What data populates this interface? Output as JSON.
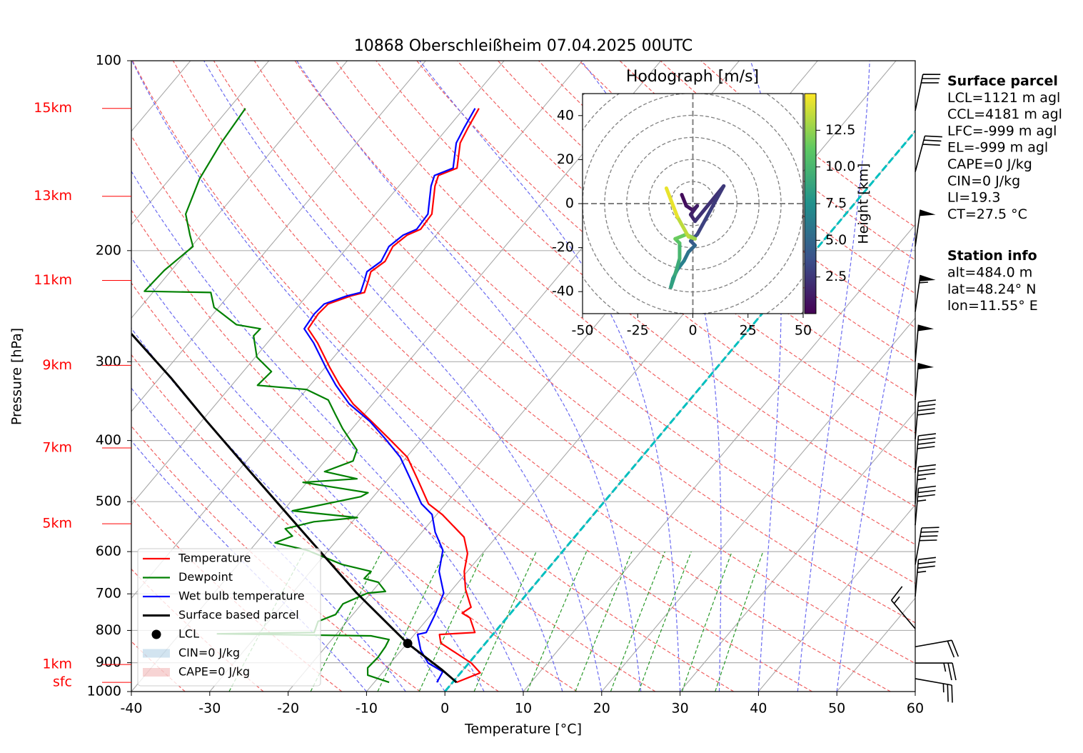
{
  "chart_data": {
    "type": "skewt",
    "title": "10868 Oberschleißheim 07.04.2025 00UTC",
    "xlabel": "Temperature [°C]",
    "ylabel": "Pressure [hPa]",
    "xlim": [
      -40,
      60
    ],
    "xticks": [
      -40,
      -30,
      -20,
      -10,
      0,
      10,
      20,
      30,
      40,
      50,
      60
    ],
    "ylim": [
      1000,
      100
    ],
    "yticks": [
      100,
      200,
      300,
      400,
      500,
      600,
      700,
      800,
      900,
      1000
    ],
    "log_scale": true,
    "grid": true,
    "legend": "lower left",
    "highlight_isotherm": {
      "value": 0,
      "color": "#00bfbf"
    },
    "series": [
      {
        "name": "Temperature",
        "color": "#ff0000",
        "pressure": [
          967,
          934,
          901,
          871,
          838,
          812,
          806,
          764,
          751,
          735,
          689,
          645,
          604,
          569,
          524,
          504,
          460,
          425,
          398,
          373,
          350,
          327,
          307,
          280,
          266,
          252,
          243,
          236,
          233,
          224,
          216,
          208,
          197,
          189,
          185,
          175,
          158,
          152,
          148,
          135,
          128,
          119
        ],
        "values": [
          0.5,
          2.5,
          0.3,
          -2.5,
          -5.7,
          -6.8,
          -2.5,
          -4.7,
          -6.2,
          -5.7,
          -8.3,
          -10.4,
          -11.9,
          -14.1,
          -19.3,
          -22.2,
          -26.3,
          -29.9,
          -34.1,
          -38.3,
          -42.5,
          -46.2,
          -49.3,
          -53.6,
          -56.3,
          -56.6,
          -56.4,
          -54.4,
          -53.0,
          -53.7,
          -54.4,
          -53.7,
          -54.3,
          -53.7,
          -52.6,
          -52.8,
          -55.4,
          -56.1,
          -54.5,
          -56.8,
          -57.4,
          -58.1
        ]
      },
      {
        "name": "Dewpoint",
        "color": "#008000",
        "pressure": [
          967,
          942,
          917,
          882,
          849,
          827,
          816,
          810,
          806,
          774,
          755,
          726,
          698,
          694,
          671,
          662,
          645,
          629,
          597,
          581,
          567,
          552,
          538,
          530,
          517,
          491,
          484,
          466,
          460,
          448,
          431,
          414,
          383,
          364,
          345,
          332,
          327,
          311,
          295,
          273,
          266,
          262,
          246,
          233,
          232,
          215,
          197,
          189,
          175,
          154,
          135,
          119
        ],
        "values": [
          -8.1,
          -11.6,
          -12.4,
          -12.2,
          -12.4,
          -12.7,
          -15.4,
          -35.2,
          -23.0,
          -23.7,
          -22.2,
          -22.4,
          -20.4,
          -18.3,
          -20.2,
          -22.4,
          -22.3,
          -26.7,
          -32.7,
          -37.6,
          -36.1,
          -37.8,
          -34.9,
          -29.8,
          -38.8,
          -31.6,
          -31.1,
          -40.5,
          -34.0,
          -38.9,
          -36.4,
          -37.1,
          -41.2,
          -43.6,
          -46.1,
          -50.0,
          -56.7,
          -56.4,
          -59.8,
          -62.5,
          -62.4,
          -65.9,
          -70.6,
          -72.6,
          -81.2,
          -80.9,
          -79.8,
          -81.4,
          -84.2,
          -86.2,
          -87.3,
          -87.9
        ]
      },
      {
        "name": "Wet bulb temperature",
        "color": "#0000ff",
        "pressure": [
          967,
          930,
          901,
          860,
          812,
          806,
          755,
          698,
          645,
          597,
          559,
          524,
          504,
          460,
          425,
          398,
          373,
          350,
          327,
          307,
          280,
          266,
          252,
          243,
          236,
          233,
          224,
          216,
          208,
          197,
          189,
          185,
          175,
          158,
          152,
          148,
          135,
          128,
          119
        ],
        "values": [
          -2.0,
          -2.4,
          -5.2,
          -7.5,
          -9.6,
          -8.7,
          -9.5,
          -10.7,
          -13.6,
          -15.4,
          -18.3,
          -20.6,
          -23.1,
          -27.2,
          -30.8,
          -34.6,
          -38.5,
          -43.0,
          -46.7,
          -49.8,
          -54.1,
          -56.8,
          -57.1,
          -56.9,
          -54.9,
          -53.5,
          -54.2,
          -54.9,
          -54.2,
          -54.8,
          -54.2,
          -53.1,
          -53.3,
          -55.9,
          -56.6,
          -55.0,
          -57.3,
          -57.9,
          -58.6
        ]
      },
      {
        "name": "Surface based parcel",
        "color": "#000000",
        "pressure": [
          967,
          925,
          839,
          698,
          552,
          448,
          373,
          319,
          271
        ],
        "values": [
          0.5,
          -2.6,
          -9.9,
          -21.8,
          -35.9,
          -48.4,
          -59.3,
          -68.4,
          -78.3
        ]
      }
    ],
    "lcl": {
      "name": "LCL",
      "color": "#000000",
      "pressure": 839,
      "values": -9.9
    },
    "shaded": [
      {
        "name": "CIN=0 J/kg",
        "color": "#1f77b4"
      },
      {
        "name": "CAPE=0 J/kg",
        "color": "#d62728"
      }
    ],
    "height_labels": [
      {
        "label": "15km",
        "pressure": 119
      },
      {
        "label": "13km",
        "pressure": 164
      },
      {
        "label": "11km",
        "pressure": 223
      },
      {
        "label": "9km",
        "pressure": 304
      },
      {
        "label": "7km",
        "pressure": 411
      },
      {
        "label": "5km",
        "pressure": 542
      },
      {
        "label": "1km",
        "pressure": 906
      },
      {
        "label": "sfc",
        "pressure": 967
      }
    ],
    "wind_barbs": {
      "pressure": [
        120,
        150,
        197,
        250,
        300,
        345,
        398,
        450,
        504,
        545,
        629,
        707,
        795,
        849,
        901,
        954
      ],
      "speed": [
        30,
        30,
        50,
        55,
        50,
        50,
        40,
        40,
        35,
        35,
        40,
        35,
        15,
        20,
        25,
        25
      ],
      "direction": [
        12,
        15,
        8,
        8,
        5,
        5,
        5,
        5,
        5,
        5,
        10,
        5,
        320,
        80,
        90,
        100
      ]
    },
    "hodograph": {
      "title": "Hodograph [m/s]",
      "xlim": [
        -50,
        50
      ],
      "ylim": [
        -50,
        50
      ],
      "xticks": [
        -50,
        -25,
        0,
        25,
        50
      ],
      "yticks": [
        -40,
        -20,
        0,
        20,
        40
      ],
      "u": [
        -5,
        -3,
        0,
        2,
        -1,
        1,
        14,
        8,
        2,
        -1,
        1,
        -2,
        -4,
        -7,
        -9,
        -10,
        -8,
        -6,
        -6,
        -8,
        -3,
        1,
        -2,
        -7,
        -12
      ],
      "v": [
        4,
        -1,
        -3,
        -1,
        -5,
        -8,
        8,
        -3,
        -14,
        -17,
        -19,
        -22,
        -26,
        -30,
        -34,
        -38,
        -32,
        -25,
        -18,
        -16,
        -14,
        -16,
        -15,
        -6,
        7
      ],
      "height": [
        0.2,
        0.5,
        0.8,
        1.0,
        1.3,
        1.6,
        2.2,
        2.6,
        3.0,
        3.5,
        4.2,
        5.0,
        5.8,
        6.5,
        7.2,
        7.8,
        8.5,
        9.2,
        10.0,
        10.8,
        11.5,
        12.2,
        12.8,
        13.5,
        14.5
      ],
      "colorbar_label": "Height [km]",
      "clim": [
        0,
        15
      ],
      "colorbar_ticks": [
        2.5,
        {
          "value": 5,
          "label": "5.0"
        },
        7.5,
        {
          "value": 10,
          "label": "10.0"
        },
        12.5
      ]
    },
    "surface_parcel": {
      "title": "Surface parcel",
      "lines": [
        "LCL=1121 m agl",
        "CCL=4181 m agl",
        "LFC=-999 m agl",
        "EL=-999 m agl",
        "CAPE=0 J/kg",
        "CIN=0 J/kg",
        "LI=19.3",
        "CT=27.5 °C"
      ]
    },
    "station_info": {
      "title": "Station info",
      "lines": [
        "alt=484.0 m",
        "lat=48.24° N",
        "lon=11.55° E"
      ]
    }
  }
}
